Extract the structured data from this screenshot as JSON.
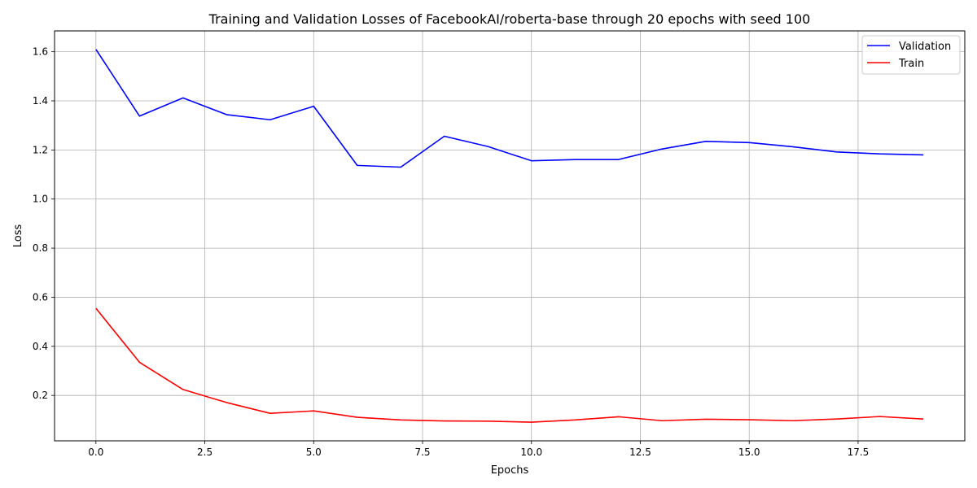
{
  "chart_data": {
    "type": "line",
    "title": "Training and Validation Losses of FacebookAI/roberta-base through 20 epochs with seed 100",
    "xlabel": "Epochs",
    "ylabel": "Loss",
    "x": [
      0,
      1,
      2,
      3,
      4,
      5,
      6,
      7,
      8,
      9,
      10,
      11,
      12,
      13,
      14,
      15,
      16,
      17,
      18,
      19
    ],
    "xlim": [
      -0.95,
      19.95
    ],
    "ylim": [
      0.015,
      1.685
    ],
    "xticks": [
      0.0,
      2.5,
      5.0,
      7.5,
      10.0,
      12.5,
      15.0,
      17.5
    ],
    "xtick_labels": [
      "0.0",
      "2.5",
      "5.0",
      "7.5",
      "10.0",
      "12.5",
      "15.0",
      "17.5"
    ],
    "yticks": [
      0.2,
      0.4,
      0.6,
      0.8,
      1.0,
      1.2,
      1.4,
      1.6
    ],
    "ytick_labels": [
      "0.2",
      "0.4",
      "0.6",
      "0.8",
      "1.0",
      "1.2",
      "1.4",
      "1.6"
    ],
    "grid": true,
    "legend_position": "top-right",
    "series": [
      {
        "name": "Validation",
        "color": "#0000ff",
        "values": [
          1.61,
          1.338,
          1.412,
          1.344,
          1.323,
          1.378,
          1.137,
          1.13,
          1.256,
          1.214,
          1.156,
          1.161,
          1.161,
          1.204,
          1.235,
          1.23,
          1.213,
          1.192,
          1.184,
          1.18
        ]
      },
      {
        "name": "Train",
        "color": "#ff0000",
        "values": [
          0.555,
          0.335,
          0.224,
          0.171,
          0.127,
          0.137,
          0.111,
          0.1,
          0.096,
          0.095,
          0.091,
          0.1,
          0.113,
          0.097,
          0.103,
          0.101,
          0.097,
          0.104,
          0.114,
          0.104
        ]
      }
    ]
  }
}
